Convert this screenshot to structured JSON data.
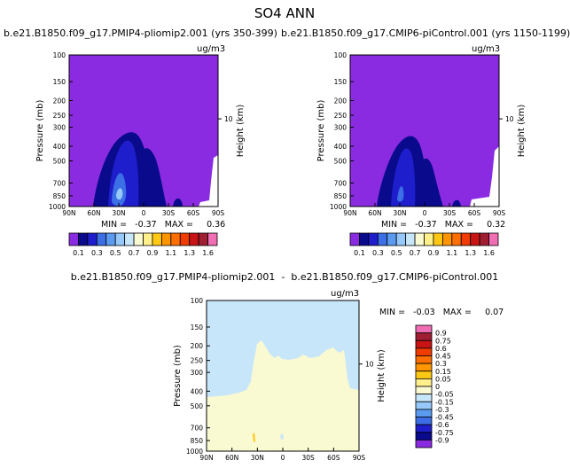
{
  "title": "SO4 ANN",
  "panels": [
    {
      "id": "left",
      "case_title": "b.e21.B1850.f09_g17.PMIP4-pliomip2.001 (yrs 350-399)",
      "units": "ug/m3",
      "stats": "MIN =   -0.37   MAX =     0.36"
    },
    {
      "id": "right",
      "case_title": "b.e21.B1850.f09_g17.CMIP6-piControl.001 (yrs 1150-1199)",
      "units": "ug/m3",
      "stats": "MIN =   -0.37   MAX =     0.32"
    },
    {
      "id": "diff",
      "case_title": "b.e21.B1850.f09_g17.PMIP4-pliomip2.001  -  b.e21.B1850.f09_g17.CMIP6-piControl.001",
      "units": "ug/m3",
      "stats": "MIN =   -0.03   MAX =     0.07"
    }
  ],
  "chart_data": [
    {
      "type": "heatmap",
      "title": "b.e21.B1850.f09_g17.PMIP4-pliomip2.001 (yrs 350-399)",
      "units": "ug/m3",
      "xlabel": "",
      "ylabel": "Pressure (mb)",
      "y2label": "Height (km)",
      "x_ticks": [
        "90N",
        "60N",
        "30N",
        "0",
        "30S",
        "60S",
        "90S"
      ],
      "y_ticks": [
        "100",
        "150",
        "200",
        "250",
        "300",
        "400",
        "500",
        "700",
        "850",
        "1000"
      ],
      "y_log": true,
      "ylim": [
        1000,
        100
      ],
      "y2_ticks": [
        "10"
      ],
      "colorbar_labels": [
        "0.1",
        "0.3",
        "0.5",
        "0.7",
        "0.9",
        "1.1",
        "1.3",
        "1.6"
      ],
      "colorbar_colors": [
        "#8a2be2",
        "#0a0a8c",
        "#1e1ecc",
        "#3c6ee6",
        "#5a9bf0",
        "#96c8fa",
        "#c8e6fa",
        "#fafad2",
        "#fff08c",
        "#ffc814",
        "#ff9600",
        "#ff6e00",
        "#f03c00",
        "#c81414",
        "#a01e32",
        "#f06eb4"
      ],
      "min": -0.37,
      "max": 0.36
    },
    {
      "type": "heatmap",
      "title": "b.e21.B1850.f09_g17.CMIP6-piControl.001 (yrs 1150-1199)",
      "units": "ug/m3",
      "xlabel": "",
      "ylabel": "Pressure (mb)",
      "y2label": "Height (km)",
      "x_ticks": [
        "90N",
        "60N",
        "30N",
        "0",
        "30S",
        "60S",
        "90S"
      ],
      "y_ticks": [
        "100",
        "150",
        "200",
        "250",
        "300",
        "400",
        "500",
        "700",
        "850",
        "1000"
      ],
      "y_log": true,
      "ylim": [
        1000,
        100
      ],
      "y2_ticks": [
        "10"
      ],
      "colorbar_labels": [
        "0.1",
        "0.3",
        "0.5",
        "0.7",
        "0.9",
        "1.1",
        "1.3",
        "1.6"
      ],
      "colorbar_colors": [
        "#8a2be2",
        "#0a0a8c",
        "#1e1ecc",
        "#3c6ee6",
        "#5a9bf0",
        "#96c8fa",
        "#c8e6fa",
        "#fafad2",
        "#fff08c",
        "#ffc814",
        "#ff9600",
        "#ff6e00",
        "#f03c00",
        "#c81414",
        "#a01e32",
        "#f06eb4"
      ],
      "min": -0.37,
      "max": 0.32
    },
    {
      "type": "heatmap",
      "title": "b.e21.B1850.f09_g17.PMIP4-pliomip2.001  -  b.e21.B1850.f09_g17.CMIP6-piControl.001",
      "units": "ug/m3",
      "xlabel": "",
      "ylabel": "Pressure (mb)",
      "y2label": "Height (km)",
      "x_ticks": [
        "90N",
        "60N",
        "30N",
        "0",
        "30S",
        "60S",
        "90S"
      ],
      "y_ticks": [
        "100",
        "150",
        "200",
        "250",
        "300",
        "400",
        "500",
        "700",
        "850",
        "1000"
      ],
      "y_log": true,
      "ylim": [
        1000,
        100
      ],
      "y2_ticks": [
        "10"
      ],
      "colorbar_labels": [
        "0.9",
        "0.75",
        "0.6",
        "0.45",
        "0.3",
        "0.15",
        "0.05",
        "0",
        "-0.05",
        "-0.15",
        "-0.3",
        "-0.45",
        "-0.6",
        "-0.75",
        "-0.9"
      ],
      "colorbar_colors": [
        "#f06eb4",
        "#a01e32",
        "#c81414",
        "#f03c00",
        "#ff6e00",
        "#ff9600",
        "#ffc814",
        "#fff08c",
        "#fafad2",
        "#c8e6fa",
        "#96c8fa",
        "#5a9bf0",
        "#3c6ee6",
        "#1e1ecc",
        "#0a0a8c",
        "#8a2be2"
      ],
      "min": -0.03,
      "max": 0.07
    }
  ]
}
